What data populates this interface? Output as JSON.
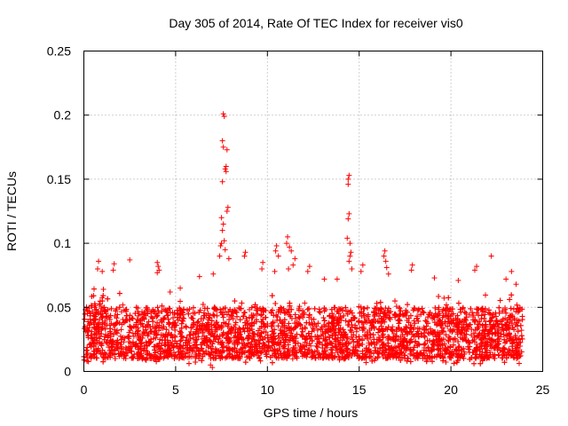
{
  "chart_data": {
    "type": "scatter",
    "title": "Day 305 of 2014, Rate Of TEC Index for receiver vis0",
    "xlabel": "GPS time / hours",
    "ylabel": "ROTI / TECUs",
    "xlim": [
      0,
      25
    ],
    "ylim": [
      0,
      0.25
    ],
    "x_ticks": [
      0,
      5,
      10,
      15,
      20,
      25
    ],
    "x_tick_labels": [
      "0",
      "5",
      "10",
      "15",
      "20",
      "25"
    ],
    "y_ticks": [
      0,
      0.05,
      0.1,
      0.15,
      0.2,
      0.25
    ],
    "y_tick_labels": [
      "0",
      "0.05",
      "0.1",
      "0.15",
      "0.2",
      "0.25"
    ],
    "grid": true,
    "marker": "+",
    "color": "#ff0000",
    "series": [
      {
        "name": "ROTI",
        "x_range": [
          0.0,
          23.9
        ],
        "baseline_range": [
          0.01,
          0.05
        ],
        "points": [
          {
            "x": 7.6,
            "y": 0.201
          },
          {
            "x": 7.65,
            "y": 0.199
          },
          {
            "x": 7.55,
            "y": 0.18
          },
          {
            "x": 7.6,
            "y": 0.175
          },
          {
            "x": 7.8,
            "y": 0.173
          },
          {
            "x": 7.75,
            "y": 0.16
          },
          {
            "x": 7.75,
            "y": 0.156
          },
          {
            "x": 7.7,
            "y": 0.158
          },
          {
            "x": 7.55,
            "y": 0.148
          },
          {
            "x": 7.85,
            "y": 0.128
          },
          {
            "x": 7.8,
            "y": 0.125
          },
          {
            "x": 7.5,
            "y": 0.12
          },
          {
            "x": 7.6,
            "y": 0.115
          },
          {
            "x": 7.55,
            "y": 0.11
          },
          {
            "x": 7.65,
            "y": 0.102
          },
          {
            "x": 7.5,
            "y": 0.1
          },
          {
            "x": 7.45,
            "y": 0.098
          },
          {
            "x": 7.7,
            "y": 0.095
          },
          {
            "x": 7.4,
            "y": 0.09
          },
          {
            "x": 7.9,
            "y": 0.088
          },
          {
            "x": 14.45,
            "y": 0.153
          },
          {
            "x": 14.4,
            "y": 0.15
          },
          {
            "x": 14.4,
            "y": 0.146
          },
          {
            "x": 14.45,
            "y": 0.123
          },
          {
            "x": 14.4,
            "y": 0.119
          },
          {
            "x": 14.35,
            "y": 0.104
          },
          {
            "x": 14.5,
            "y": 0.1
          },
          {
            "x": 14.55,
            "y": 0.093
          },
          {
            "x": 14.5,
            "y": 0.09
          },
          {
            "x": 14.45,
            "y": 0.086
          },
          {
            "x": 14.6,
            "y": 0.08
          },
          {
            "x": 11.1,
            "y": 0.105
          },
          {
            "x": 11.05,
            "y": 0.1
          },
          {
            "x": 11.2,
            "y": 0.097
          },
          {
            "x": 11.3,
            "y": 0.094
          },
          {
            "x": 11.5,
            "y": 0.088
          },
          {
            "x": 11.4,
            "y": 0.083
          },
          {
            "x": 11.15,
            "y": 0.08
          },
          {
            "x": 10.5,
            "y": 0.098
          },
          {
            "x": 10.45,
            "y": 0.094
          },
          {
            "x": 10.6,
            "y": 0.09
          },
          {
            "x": 10.4,
            "y": 0.078
          },
          {
            "x": 16.4,
            "y": 0.094
          },
          {
            "x": 16.35,
            "y": 0.09
          },
          {
            "x": 16.45,
            "y": 0.086
          },
          {
            "x": 16.5,
            "y": 0.081
          },
          {
            "x": 16.6,
            "y": 0.076
          },
          {
            "x": 22.2,
            "y": 0.09
          },
          {
            "x": 8.8,
            "y": 0.093
          },
          {
            "x": 8.75,
            "y": 0.09
          },
          {
            "x": 2.5,
            "y": 0.087
          },
          {
            "x": 4.0,
            "y": 0.085
          },
          {
            "x": 4.05,
            "y": 0.082
          },
          {
            "x": 4.1,
            "y": 0.079
          },
          {
            "x": 4.0,
            "y": 0.077
          },
          {
            "x": 0.8,
            "y": 0.086
          },
          {
            "x": 0.75,
            "y": 0.08
          },
          {
            "x": 1.0,
            "y": 0.078
          },
          {
            "x": 1.65,
            "y": 0.084
          },
          {
            "x": 1.6,
            "y": 0.079
          },
          {
            "x": 9.75,
            "y": 0.085
          },
          {
            "x": 9.7,
            "y": 0.08
          },
          {
            "x": 12.3,
            "y": 0.082
          },
          {
            "x": 12.2,
            "y": 0.078
          },
          {
            "x": 15.2,
            "y": 0.083
          },
          {
            "x": 15.1,
            "y": 0.078
          },
          {
            "x": 17.9,
            "y": 0.083
          },
          {
            "x": 17.85,
            "y": 0.079
          },
          {
            "x": 21.4,
            "y": 0.082
          },
          {
            "x": 21.3,
            "y": 0.079
          },
          {
            "x": 23.3,
            "y": 0.078
          },
          {
            "x": 6.3,
            "y": 0.074
          },
          {
            "x": 7.05,
            "y": 0.076
          },
          {
            "x": 13.1,
            "y": 0.072
          },
          {
            "x": 13.8,
            "y": 0.072
          },
          {
            "x": 19.1,
            "y": 0.073
          },
          {
            "x": 20.4,
            "y": 0.071
          },
          {
            "x": 23.0,
            "y": 0.072
          },
          {
            "x": 23.55,
            "y": 0.068
          },
          {
            "x": 5.25,
            "y": 0.065
          },
          {
            "x": 4.7,
            "y": 0.062
          },
          {
            "x": 7.0,
            "y": 0.003
          },
          {
            "x": 6.9,
            "y": 0.005
          }
        ]
      }
    ]
  }
}
